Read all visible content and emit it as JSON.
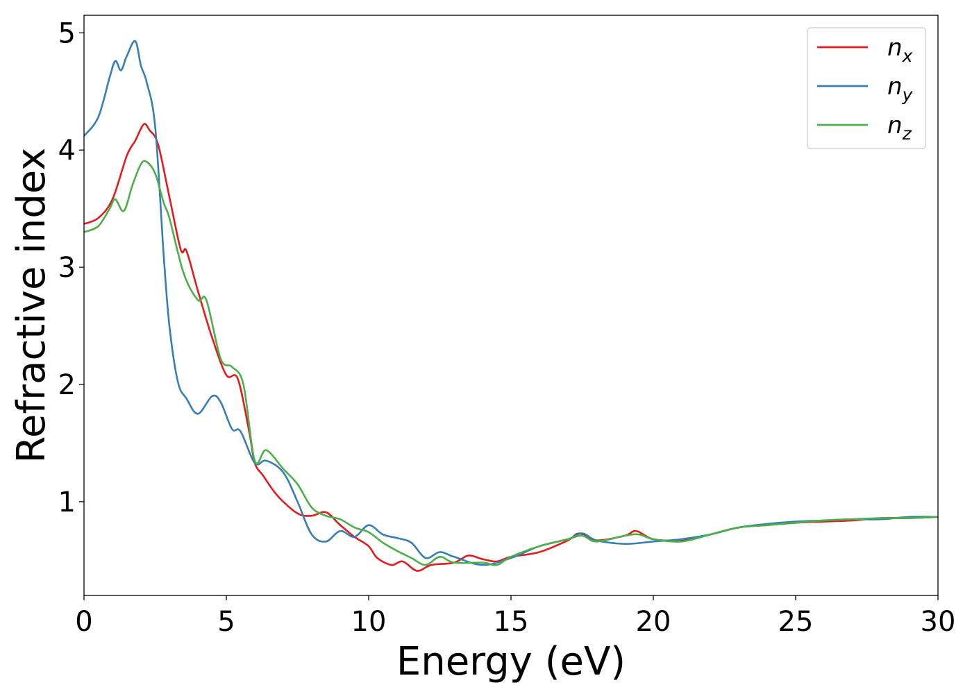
{
  "chart_data": {
    "type": "line",
    "xlabel": "Energy (eV)",
    "ylabel": "Refractive index",
    "xlim": [
      0,
      30
    ],
    "ylim": [
      0.2,
      5.15
    ],
    "grid": false,
    "legend_placement": "top-right",
    "xticks": [
      0,
      5,
      10,
      15,
      20,
      25,
      30
    ],
    "xtick_labels": [
      "0",
      "5",
      "10",
      "15",
      "20",
      "25",
      "30"
    ],
    "yticks": [
      1,
      2,
      3,
      4,
      5
    ],
    "ytick_labels": [
      "1",
      "2",
      "3",
      "4",
      "5"
    ],
    "series": [
      {
        "name": "n_x",
        "base": "n",
        "sub": "x",
        "color": "#e41a1c",
        "x": [
          0,
          0.5,
          1.0,
          1.5,
          1.8,
          2.1,
          2.3,
          2.6,
          3.0,
          3.4,
          3.6,
          4.0,
          4.5,
          5.0,
          5.4,
          5.8,
          6.0,
          6.3,
          6.8,
          7.5,
          8.0,
          8.5,
          9.0,
          9.5,
          10.0,
          10.3,
          10.8,
          11.2,
          11.7,
          12.2,
          13.0,
          13.5,
          14.0,
          14.5,
          15.0,
          16.0,
          17.0,
          17.4,
          18.0,
          19.0,
          19.4,
          20.0,
          21.0,
          22.0,
          23.0,
          24.0,
          25.0,
          26.0,
          27.0,
          28.0,
          29.0,
          30.0
        ],
        "y": [
          3.37,
          3.42,
          3.58,
          3.95,
          4.08,
          4.22,
          4.17,
          4.05,
          3.6,
          3.15,
          3.14,
          2.8,
          2.4,
          2.08,
          2.05,
          1.6,
          1.33,
          1.22,
          1.05,
          0.9,
          0.88,
          0.91,
          0.8,
          0.7,
          0.62,
          0.52,
          0.46,
          0.49,
          0.41,
          0.46,
          0.48,
          0.54,
          0.51,
          0.49,
          0.53,
          0.57,
          0.67,
          0.73,
          0.67,
          0.71,
          0.75,
          0.68,
          0.67,
          0.72,
          0.78,
          0.8,
          0.82,
          0.83,
          0.84,
          0.86,
          0.86,
          0.87
        ]
      },
      {
        "name": "n_y",
        "base": "n",
        "sub": "y",
        "color": "#377eb8",
        "x": [
          0,
          0.5,
          0.9,
          1.1,
          1.3,
          1.5,
          1.8,
          2.0,
          2.2,
          2.5,
          2.8,
          3.0,
          3.3,
          3.6,
          4.0,
          4.5,
          4.8,
          5.2,
          5.5,
          6.0,
          6.4,
          7.0,
          7.5,
          8.0,
          8.5,
          9.0,
          9.5,
          10.0,
          10.5,
          11.0,
          11.5,
          12.0,
          12.5,
          13.0,
          14.0,
          15.0,
          16.0,
          17.0,
          17.5,
          18.0,
          19.0,
          20.0,
          21.0,
          22.0,
          23.0,
          24.0,
          25.0,
          26.0,
          27.0,
          28.0,
          29.0,
          30.0
        ],
        "y": [
          4.12,
          4.28,
          4.62,
          4.76,
          4.68,
          4.8,
          4.93,
          4.72,
          4.58,
          4.2,
          3.1,
          2.5,
          2.02,
          1.88,
          1.75,
          1.9,
          1.85,
          1.62,
          1.6,
          1.33,
          1.35,
          1.25,
          1.0,
          0.72,
          0.66,
          0.75,
          0.7,
          0.8,
          0.72,
          0.69,
          0.65,
          0.52,
          0.57,
          0.53,
          0.46,
          0.52,
          0.62,
          0.68,
          0.73,
          0.67,
          0.64,
          0.66,
          0.68,
          0.72,
          0.78,
          0.81,
          0.83,
          0.84,
          0.85,
          0.85,
          0.87,
          0.87
        ]
      },
      {
        "name": "n_z",
        "base": "n",
        "sub": "z",
        "color": "#4daf4a",
        "x": [
          0,
          0.5,
          0.9,
          1.1,
          1.4,
          1.7,
          2.0,
          2.2,
          2.5,
          2.8,
          3.0,
          3.5,
          4.0,
          4.3,
          4.8,
          5.2,
          5.6,
          6.0,
          6.4,
          7.0,
          7.5,
          8.0,
          8.5,
          9.0,
          9.5,
          10.0,
          10.5,
          11.0,
          11.5,
          12.0,
          12.5,
          13.0,
          14.0,
          14.5,
          15.0,
          16.0,
          17.0,
          17.5,
          18.0,
          19.0,
          19.5,
          20.0,
          21.0,
          22.0,
          23.0,
          24.0,
          25.0,
          26.0,
          27.0,
          28.0,
          29.0,
          30.0
        ],
        "y": [
          3.3,
          3.35,
          3.5,
          3.58,
          3.48,
          3.7,
          3.88,
          3.9,
          3.8,
          3.55,
          3.42,
          2.95,
          2.72,
          2.72,
          2.22,
          2.15,
          2.0,
          1.35,
          1.44,
          1.28,
          1.15,
          0.95,
          0.88,
          0.85,
          0.78,
          0.74,
          0.65,
          0.58,
          0.52,
          0.46,
          0.53,
          0.48,
          0.48,
          0.46,
          0.53,
          0.62,
          0.68,
          0.71,
          0.66,
          0.71,
          0.72,
          0.68,
          0.66,
          0.72,
          0.78,
          0.8,
          0.82,
          0.84,
          0.85,
          0.86,
          0.86,
          0.87
        ]
      }
    ]
  }
}
